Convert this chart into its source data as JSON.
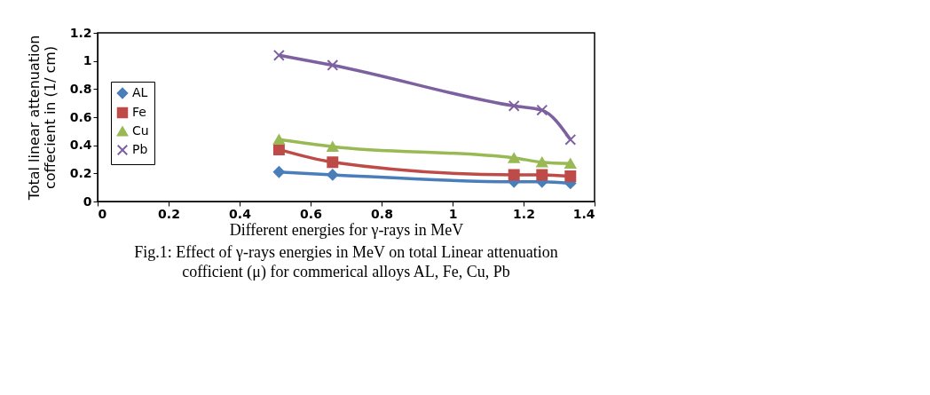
{
  "chart_data": {
    "type": "line",
    "xlabel": "Different energies for γ-rays in MeV",
    "ylabel": "Total linear attenuation coffecient in (1/ cm)",
    "x": [
      0.511,
      0.662,
      1.173,
      1.252,
      1.332
    ],
    "series": [
      {
        "name": "AL",
        "color": "#4a7ebb",
        "marker": "diamond",
        "values": [
          0.21,
          0.19,
          0.14,
          0.14,
          0.13
        ]
      },
      {
        "name": "Fe",
        "color": "#be4b48",
        "marker": "square",
        "values": [
          0.37,
          0.28,
          0.19,
          0.19,
          0.18
        ]
      },
      {
        "name": "Cu",
        "color": "#98b954",
        "marker": "triangle",
        "values": [
          0.44,
          0.39,
          0.31,
          0.28,
          0.27
        ]
      },
      {
        "name": "Pb",
        "color": "#7d60a0",
        "marker": "cross",
        "values": [
          1.04,
          0.97,
          0.68,
          0.65,
          0.44
        ]
      }
    ],
    "xlim": [
      0,
      1.4
    ],
    "xticks": [
      0,
      0.2,
      0.4,
      0.6,
      0.8,
      1,
      1.2,
      1.4
    ],
    "ylim": [
      0,
      1.2
    ],
    "yticks": [
      0,
      0.2,
      0.4,
      0.6,
      0.8,
      1,
      1.2
    ],
    "grid": false,
    "legend": "left",
    "annotations": [
      "Fig.1: Effect of γ-rays energies in MeV on total Linear attenuation",
      "cofficient (μ)   for commerical alloys  AL, Fe, Cu, Pb"
    ]
  }
}
